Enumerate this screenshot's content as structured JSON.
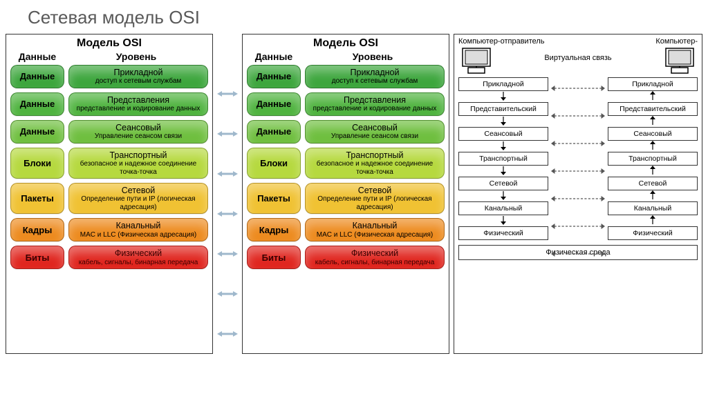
{
  "title": "Сетевая модель OSI",
  "panel_title": "Модель OSI",
  "col_data": "Данные",
  "col_level": "Уровень",
  "layers": [
    {
      "data": "Данные",
      "name": "Прикладной",
      "desc": "доступ к сетевым службам",
      "color": "#3da63d",
      "text": "#000000"
    },
    {
      "data": "Данные",
      "name": "Представления",
      "desc": "представление и кодирование данных",
      "color": "#4fb33f",
      "text": "#000000"
    },
    {
      "data": "Данные",
      "name": "Сеансовый",
      "desc": "Управление сеансом связи",
      "color": "#6fbf3f",
      "text": "#000000"
    },
    {
      "data": "Блоки",
      "name": "Транспортный",
      "desc": "безопасное и надежное соединение точка-точка",
      "color": "#b6d93f",
      "text": "#000000"
    },
    {
      "data": "Пакеты",
      "name": "Сетевой",
      "desc": "Определение пути и IP (логическая адресация)",
      "color": "#f0c233",
      "text": "#000000"
    },
    {
      "data": "Кадры",
      "name": "Канальный",
      "desc": "MAC и LLC (Физическая адресация)",
      "color": "#ed8b1f",
      "text": "#000000"
    },
    {
      "data": "Биты",
      "name": "Физический",
      "desc": "кабель, сигналы, бинарная передача",
      "color": "#e0261f",
      "text": "#3a0000"
    }
  ],
  "arrow_color": "#9fb8cc",
  "right": {
    "sender": "Компьютер-отправитель",
    "receiver": "Компьютер-",
    "virtual": "Виртуальная связь",
    "medium": "Физическая среда",
    "boxes": [
      "Прикладной",
      "Представительский",
      "Сеансовый",
      "Транспортный",
      "Сетевой",
      "Канальный",
      "Физический"
    ],
    "box_border": "#333333",
    "dash_color": "#555555"
  }
}
